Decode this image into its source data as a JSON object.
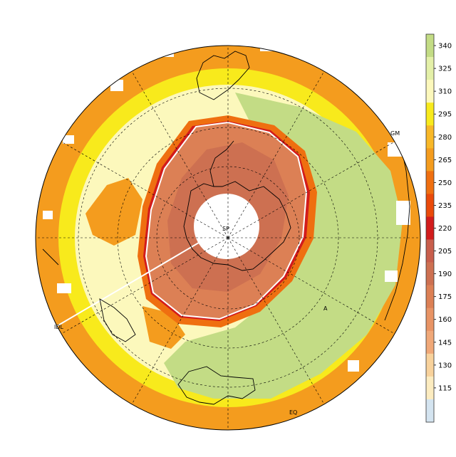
{
  "map": {
    "projection": "south-polar-stereographic",
    "center_label": "SP",
    "grid_on": true,
    "outline_color": "#000000",
    "ozone_hole_contour_color": "#ffffff",
    "place_labels": {
      "greenwich": "GM",
      "international_date_line": "IDL",
      "equator": "EQ",
      "africa_marker": "A"
    }
  },
  "colorbar": {
    "placement": "right",
    "levels": [
      {
        "label": "340",
        "color": "#c3dc85"
      },
      {
        "label": "325",
        "color": "#e4f0a8"
      },
      {
        "label": "310",
        "color": "#fcf8bc"
      },
      {
        "label": "295",
        "color": "#f8ea1c"
      },
      {
        "label": "280",
        "color": "#f8b828"
      },
      {
        "label": "265",
        "color": "#f49c1e"
      },
      {
        "label": "250",
        "color": "#ef6f10"
      },
      {
        "label": "235",
        "color": "#ea4a0a"
      },
      {
        "label": "220",
        "color": "#d21c1c"
      },
      {
        "label": "205",
        "color": "#c85e4c"
      },
      {
        "label": "190",
        "color": "#cd7051"
      },
      {
        "label": "175",
        "color": "#dc8055"
      },
      {
        "label": "160",
        "color": "#e89465"
      },
      {
        "label": "145",
        "color": "#f0a878"
      },
      {
        "label": "130",
        "color": "#f8d29c"
      },
      {
        "label": "115",
        "color": "#fcecc0"
      },
      {
        "label": "",
        "color": "#d4e4f0"
      }
    ]
  },
  "regions": {
    "green_sector_color": "#c3dc85",
    "hole_fill_color": "#dc8055",
    "hole_core_color": "#cd7051",
    "hole_rim_color": "#d21c1c",
    "collar_color": "#ef6f10",
    "no_data_color": "#ffffff",
    "outer_ring_color": "#f49c1e",
    "yellow_band_color": "#f8ea1c",
    "pale_band_color": "#fcf8bc"
  }
}
